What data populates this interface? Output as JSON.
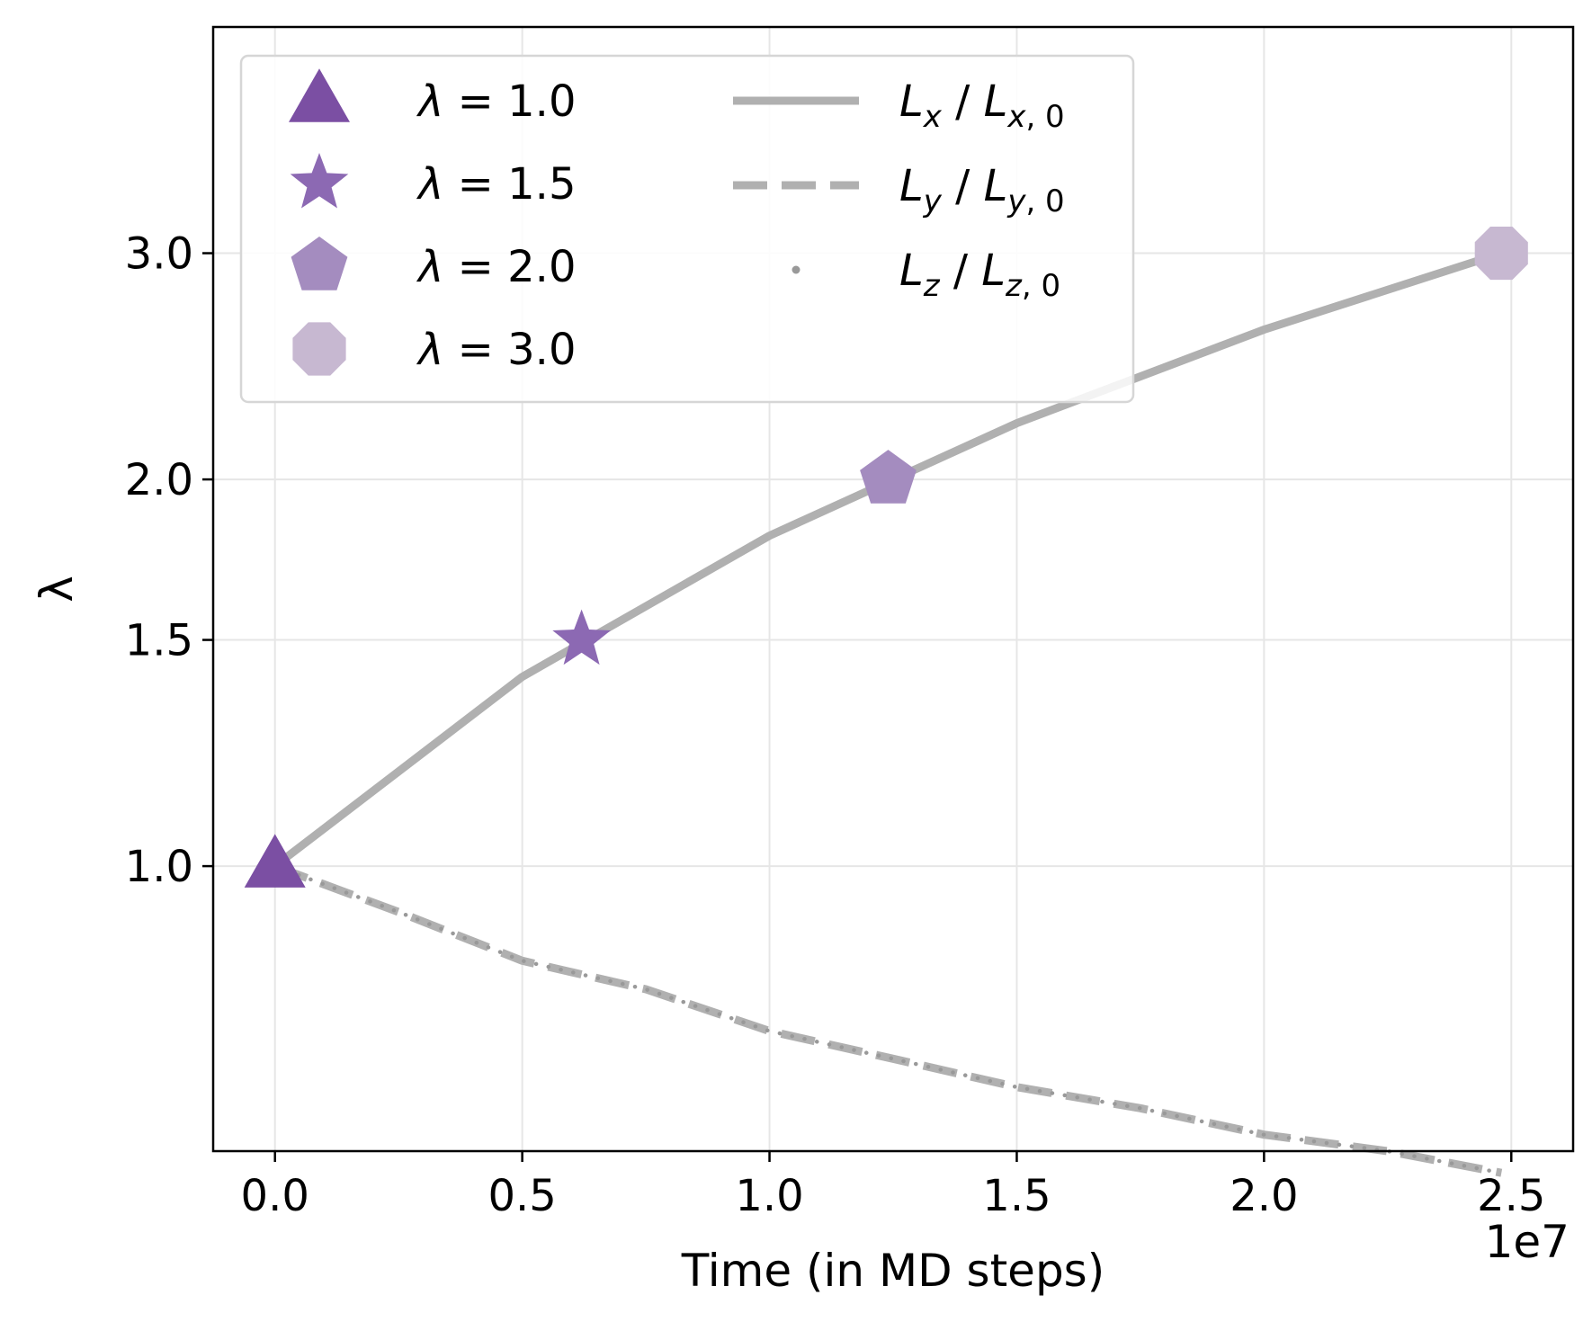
{
  "chart_data": {
    "type": "line",
    "title": "",
    "xlabel": "Time (in MD steps)",
    "ylabel": "λ",
    "x_offset_label": "1e7",
    "xlim": [
      -0.125,
      2.625
    ],
    "x_scale_note": "x values in units of 1e7",
    "yscale": "log",
    "ylim": [
      0.6,
      4.5
    ],
    "xticks": [
      0.0,
      0.5,
      1.0,
      1.5,
      2.0,
      2.5
    ],
    "xtick_labels": [
      "0.0",
      "0.5",
      "1.0",
      "1.5",
      "2.0",
      "2.5"
    ],
    "yticks": [
      1.0,
      1.5,
      2.0,
      3.0
    ],
    "ytick_labels": [
      "1.0",
      "1.5",
      "2.0",
      "3.0"
    ],
    "grid": true,
    "legend_placement": "top-left",
    "series": [
      {
        "name": "Lx / Lx,0",
        "style": "solid",
        "color": "#b0b0b0",
        "x": [
          0.0,
          0.5,
          1.0,
          1.5,
          2.0,
          2.48
        ],
        "y": [
          1.0,
          1.404,
          1.808,
          2.212,
          2.616,
          3.0
        ]
      },
      {
        "name": "Ly / Ly,0",
        "style": "dashed",
        "color": "#b0b0b0",
        "x": [
          0.0,
          0.25,
          0.5,
          0.75,
          1.0,
          1.25,
          1.5,
          1.75,
          2.0,
          2.25,
          2.48
        ],
        "y": [
          1.0,
          0.921,
          0.844,
          0.802,
          0.744,
          0.708,
          0.673,
          0.648,
          0.618,
          0.6,
          0.577
        ]
      },
      {
        "name": "Lz / Lz,0",
        "style": "dotted",
        "color": "#999999",
        "x": [
          0.0,
          0.25,
          0.5,
          0.75,
          1.0,
          1.25,
          1.5,
          1.75,
          2.0,
          2.25,
          2.48
        ],
        "y": [
          1.0,
          0.921,
          0.844,
          0.802,
          0.744,
          0.708,
          0.673,
          0.648,
          0.618,
          0.6,
          0.577
        ]
      }
    ],
    "markers": [
      {
        "label": "λ = 1.0",
        "shape": "triangle",
        "color": "#7b4fa3",
        "x": 0.0,
        "y": 1.0
      },
      {
        "label": "λ = 1.5",
        "shape": "star",
        "color": "#8c69b3",
        "x": 0.62,
        "y": 1.5
      },
      {
        "label": "λ = 2.0",
        "shape": "pentagon",
        "color": "#a48cbf",
        "x": 1.24,
        "y": 2.0
      },
      {
        "label": "λ = 3.0",
        "shape": "octagon",
        "color": "#c7b8d1",
        "x": 2.48,
        "y": 3.0
      }
    ],
    "legend_lines": [
      {
        "symbol": "L",
        "sub": "x",
        "sub0": "x, 0"
      },
      {
        "symbol": "L",
        "sub": "y",
        "sub0": "y, 0"
      },
      {
        "symbol": "L",
        "sub": "z",
        "sub0": "z, 0"
      }
    ]
  }
}
